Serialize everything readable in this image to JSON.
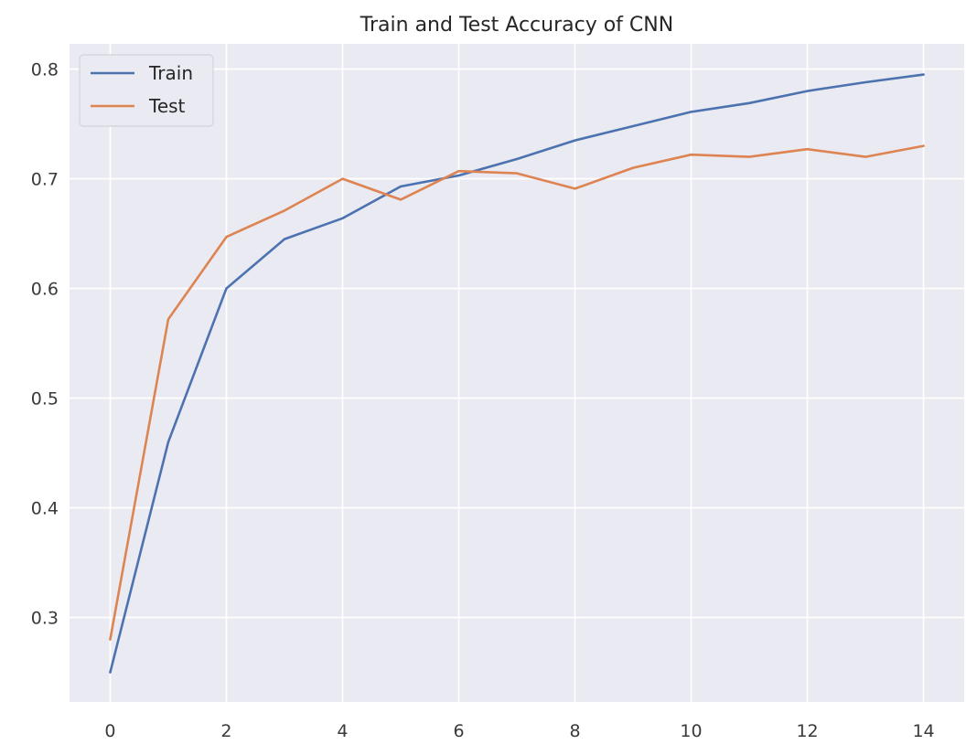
{
  "chart_data": {
    "type": "line",
    "title": "Train and Test Accuracy of CNN",
    "xlabel": "",
    "ylabel": "",
    "x": [
      0,
      1,
      2,
      3,
      4,
      5,
      6,
      7,
      8,
      9,
      10,
      11,
      12,
      13,
      14
    ],
    "xlim": [
      -0.7,
      14.7
    ],
    "ylim": [
      0.223,
      0.823
    ],
    "xticks": [
      0,
      2,
      4,
      6,
      8,
      10,
      12,
      14
    ],
    "yticks": [
      0.3,
      0.4,
      0.5,
      0.6,
      0.7,
      0.8
    ],
    "xtick_labels": [
      "0",
      "2",
      "4",
      "6",
      "8",
      "10",
      "12",
      "14"
    ],
    "ytick_labels": [
      "0.3",
      "0.4",
      "0.5",
      "0.6",
      "0.7",
      "0.8"
    ],
    "grid": true,
    "legend_position": "top-left",
    "background_color": "#eaeaf2",
    "series": [
      {
        "name": "Train",
        "color": "#4c72b0",
        "values": [
          0.25,
          0.46,
          0.6,
          0.645,
          0.664,
          0.693,
          0.703,
          0.718,
          0.735,
          0.748,
          0.761,
          0.769,
          0.78,
          0.788,
          0.795
        ]
      },
      {
        "name": "Test",
        "color": "#dd8452",
        "values": [
          0.28,
          0.572,
          0.647,
          0.671,
          0.7,
          0.681,
          0.707,
          0.705,
          0.691,
          0.71,
          0.722,
          0.72,
          0.727,
          0.72,
          0.73
        ]
      }
    ]
  }
}
